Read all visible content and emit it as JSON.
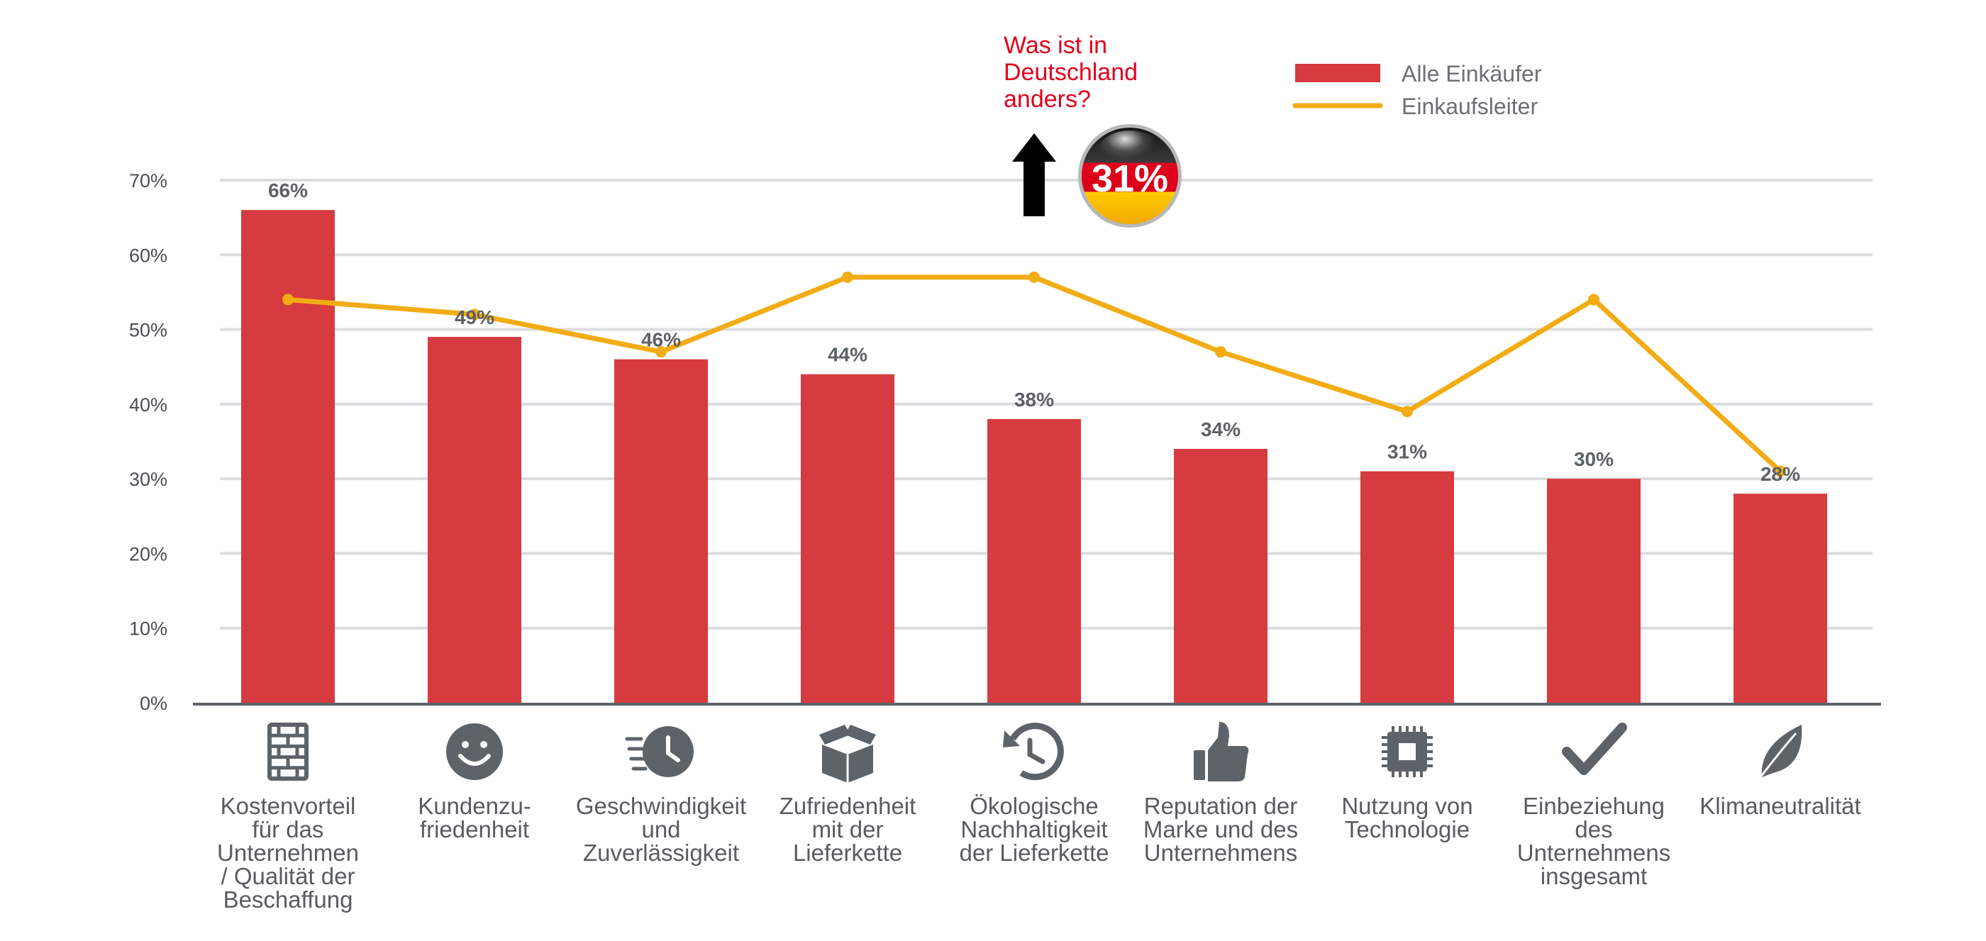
{
  "chart_data": {
    "type": "bar",
    "categories": [
      [
        "Kostenvorteil",
        "für das",
        "Unternehmen",
        "/ Qualität der",
        "Beschaffung"
      ],
      [
        "Kundenzu-",
        "friedenheit"
      ],
      [
        "Geschwindigkeit",
        "und",
        "Zuverlässigkeit"
      ],
      [
        "Zufriedenheit",
        "mit der",
        "Lieferkette"
      ],
      [
        "Ökologische",
        "Nachhaltigkeit",
        "der Lieferkette"
      ],
      [
        "Reputation der",
        "Marke und des",
        "Unternehmens"
      ],
      [
        "Nutzung von",
        "Technologie"
      ],
      [
        "Einbeziehung",
        "des",
        "Unternehmens",
        "insgesamt"
      ],
      [
        "Klimaneutralität"
      ]
    ],
    "category_icons": [
      "bricks-icon",
      "smiley-icon",
      "fast-clock-icon",
      "open-box-icon",
      "recycle-clock-icon",
      "thumbs-up-icon",
      "chip-icon",
      "checkmark-icon",
      "leaf-icon"
    ],
    "series": [
      {
        "name": "Alle Einkäufer",
        "type": "bar",
        "color": "#d63b3f",
        "values": [
          66,
          49,
          46,
          44,
          38,
          34,
          31,
          30,
          28
        ],
        "data_labels": [
          "66%",
          "49%",
          "46%",
          "44%",
          "38%",
          "34%",
          "31%",
          "30%",
          "28%"
        ]
      },
      {
        "name": "Einkaufsleiter",
        "type": "line",
        "color": "#f2ac15",
        "values": [
          54,
          52,
          47,
          57,
          57,
          47,
          39,
          54,
          31
        ]
      }
    ],
    "ylim": [
      0,
      70
    ],
    "yticks": [
      "0%",
      "10%",
      "20%",
      "30%",
      "40%",
      "50%",
      "60%",
      "70%"
    ],
    "grid": true,
    "legend_position": "top-right",
    "callout": {
      "lines": [
        "Was ist in",
        "Deutschland",
        "anders?"
      ],
      "badge_value": "31%",
      "color": "#e3001b"
    }
  }
}
